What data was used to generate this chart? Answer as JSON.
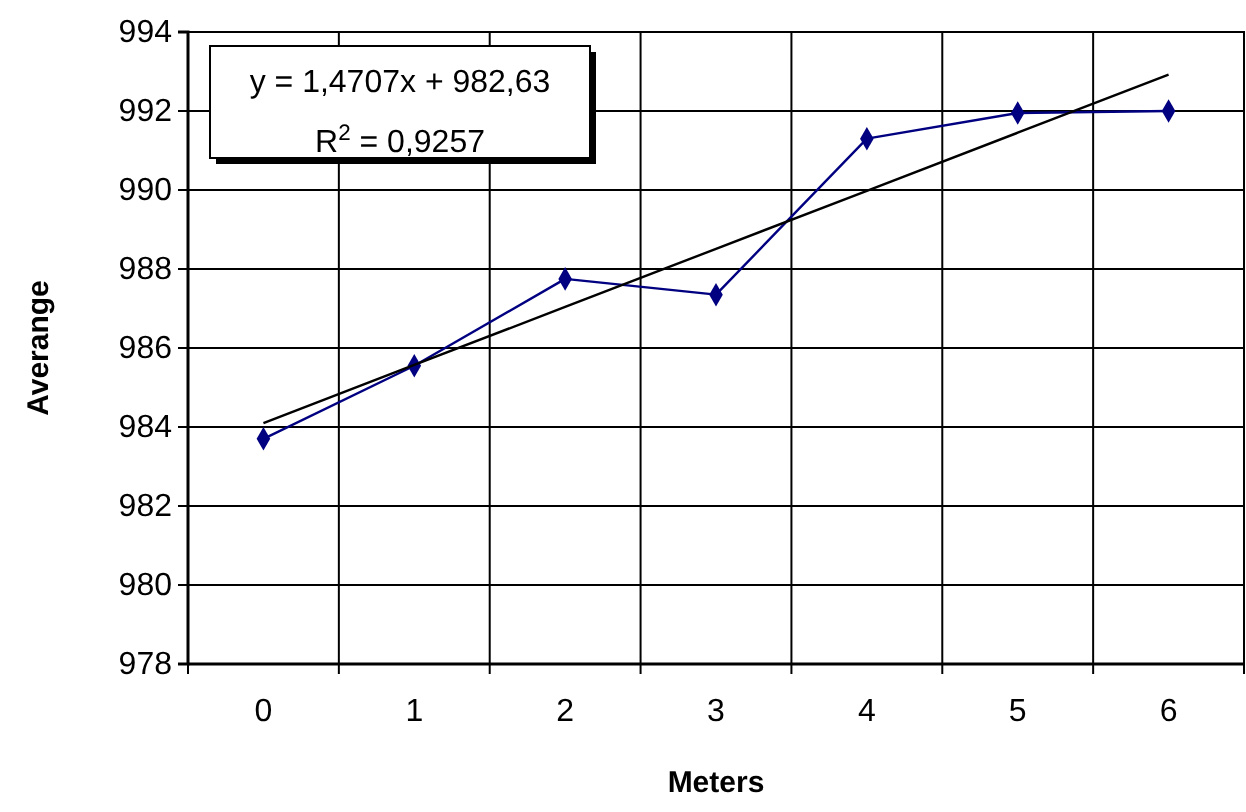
{
  "chart_data": {
    "type": "line",
    "xlabel": "Meters",
    "ylabel": "Averange",
    "categories": [
      "0",
      "1",
      "2",
      "3",
      "4",
      "5",
      "6"
    ],
    "series": [
      {
        "color": "#000080",
        "values": [
          983.7,
          985.55,
          987.75,
          987.35,
          991.3,
          991.95,
          992.0
        ],
        "marker": "diamond"
      },
      {
        "type": "line",
        "color": "#000000",
        "values": [
          984.1,
          985.57,
          987.04,
          988.51,
          989.98,
          991.45,
          992.92
        ],
        "marker": "none"
      }
    ],
    "ylim": [
      978,
      994
    ],
    "yticks": [
      978,
      980,
      982,
      984,
      986,
      988,
      990,
      992,
      994
    ],
    "grid": true,
    "annotations": [
      "y = 1,4707x + 982,63",
      "R$^{2}$ = 0,9257"
    ]
  }
}
